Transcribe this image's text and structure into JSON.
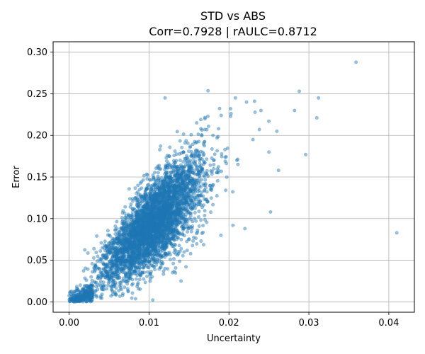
{
  "chart_data": {
    "type": "scatter",
    "title_line1": "STD vs ABS",
    "title_line2": "Corr=0.7928 | rAULC=0.8712",
    "xlabel": "Uncertainty",
    "ylabel": "Error",
    "xlim": [
      -0.002,
      0.0432
    ],
    "ylim": [
      -0.0125,
      0.3125
    ],
    "xticks": [
      0.0,
      0.01,
      0.02,
      0.03,
      0.04
    ],
    "xtick_labels": [
      "0.00",
      "0.01",
      "0.02",
      "0.03",
      "0.04"
    ],
    "yticks": [
      0.0,
      0.05,
      0.1,
      0.15,
      0.2,
      0.25,
      0.3
    ],
    "ytick_labels": [
      "0.00",
      "0.05",
      "0.10",
      "0.15",
      "0.20",
      "0.25",
      "0.30"
    ],
    "grid": true,
    "point_color": "#1f77b4",
    "point_alpha": 0.45,
    "main_cloud": {
      "n_points": 4200,
      "x_center": 0.0105,
      "x_std": 0.0032,
      "slope": 9.0,
      "y_noise_std": 0.025,
      "seed": 7
    },
    "low_cluster": {
      "n_points": 260,
      "x_range": [
        0.0,
        0.003
      ],
      "slope": 4.0,
      "y_noise_std": 0.006
    },
    "outliers": [
      {
        "x": 0.0359,
        "y": 0.288
      },
      {
        "x": 0.041,
        "y": 0.083
      },
      {
        "x": 0.0288,
        "y": 0.253
      },
      {
        "x": 0.0312,
        "y": 0.245
      },
      {
        "x": 0.031,
        "y": 0.221
      },
      {
        "x": 0.0296,
        "y": 0.177
      },
      {
        "x": 0.0282,
        "y": 0.23
      },
      {
        "x": 0.025,
        "y": 0.217
      },
      {
        "x": 0.024,
        "y": 0.23
      },
      {
        "x": 0.0232,
        "y": 0.241
      },
      {
        "x": 0.0222,
        "y": 0.24
      },
      {
        "x": 0.026,
        "y": 0.205
      },
      {
        "x": 0.025,
        "y": 0.18
      },
      {
        "x": 0.0262,
        "y": 0.158
      },
      {
        "x": 0.0252,
        "y": 0.108
      },
      {
        "x": 0.0238,
        "y": 0.207
      },
      {
        "x": 0.023,
        "y": 0.195
      },
      {
        "x": 0.0208,
        "y": 0.245
      },
      {
        "x": 0.0202,
        "y": 0.232
      },
      {
        "x": 0.022,
        "y": 0.088
      },
      {
        "x": 0.0205,
        "y": 0.092
      },
      {
        "x": 0.012,
        "y": 0.245
      },
      {
        "x": 0.017,
        "y": 0.22
      },
      {
        "x": 0.0165,
        "y": 0.208
      },
      {
        "x": 0.014,
        "y": 0.025
      },
      {
        "x": 0.012,
        "y": 0.04
      },
      {
        "x": 0.018,
        "y": 0.2
      },
      {
        "x": 0.0195,
        "y": 0.183
      },
      {
        "x": 0.019,
        "y": 0.08
      },
      {
        "x": 0.021,
        "y": 0.17
      }
    ]
  }
}
